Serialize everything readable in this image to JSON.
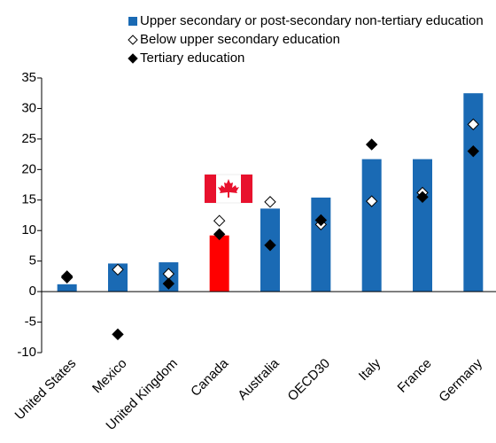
{
  "chart_data": {
    "type": "bar",
    "categories": [
      "United States",
      "Mexico",
      "United Kingdom",
      "Canada",
      "Australia",
      "OECD30",
      "Italy",
      "France",
      "Germany"
    ],
    "series": [
      {
        "name": "Upper secondary or post-secondary non-tertiary education",
        "color": "#1a6ab4",
        "marker": "bar",
        "values": [
          1.2,
          4.6,
          4.8,
          9.2,
          13.6,
          15.4,
          21.7,
          21.7,
          32.5
        ]
      },
      {
        "name": "Below upper secondary education",
        "color": "#ffffff",
        "marker": "diamond",
        "values": [
          2.3,
          3.6,
          2.9,
          11.6,
          14.7,
          11.0,
          14.8,
          16.2,
          27.4
        ]
      },
      {
        "name": "Tertiary education",
        "color": "#000000",
        "marker": "diamond",
        "values": [
          2.5,
          -7.0,
          1.3,
          9.4,
          7.6,
          11.7,
          24.1,
          15.5,
          23.0
        ]
      }
    ],
    "highlight_category": "Canada",
    "highlight_color": "#ff0000",
    "ylim": [
      -10,
      35
    ],
    "yticks": [
      -10,
      -5,
      0,
      5,
      10,
      15,
      20,
      25,
      30,
      35
    ],
    "grid": false
  }
}
